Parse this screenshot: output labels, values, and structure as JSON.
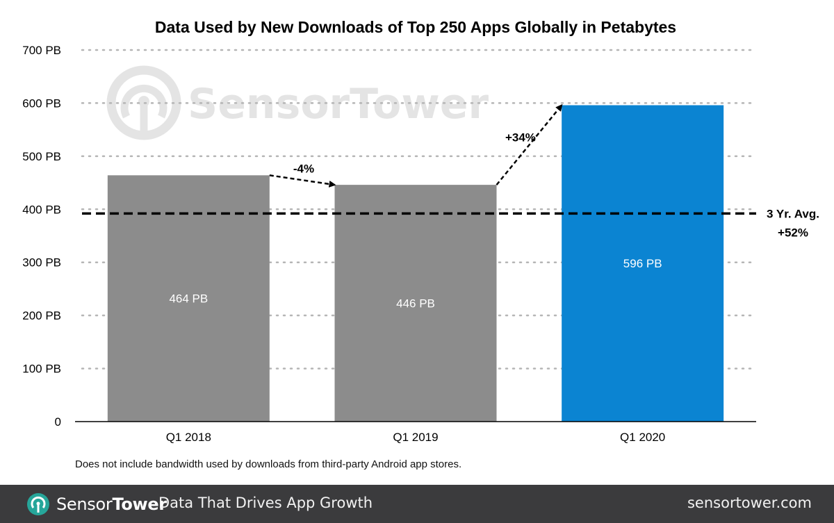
{
  "chart_data": {
    "type": "bar",
    "title": "Data Used by New Downloads of Top 250 Apps Globally in Petabytes",
    "categories": [
      "Q1 2018",
      "Q1 2019",
      "Q1 2020"
    ],
    "values": [
      464,
      446,
      596
    ],
    "data_labels": [
      "464 PB",
      "446 PB",
      "596 PB"
    ],
    "bar_colors": [
      "#8c8c8c",
      "#8c8c8c",
      "#0b84d2"
    ],
    "ylim": [
      0,
      700
    ],
    "yticks": [
      0,
      100,
      200,
      300,
      400,
      500,
      600,
      700
    ],
    "ytick_labels": [
      "0",
      "100 PB",
      "200 PB",
      "300 PB",
      "400 PB",
      "500 PB",
      "600 PB",
      "700 PB"
    ],
    "grid": true,
    "average_line": {
      "value": 392,
      "label_line1": "3 Yr. Avg.",
      "label_line2": "+52%"
    },
    "change_annotations": [
      {
        "from": "Q1 2018",
        "to": "Q1 2019",
        "label": "-4%"
      },
      {
        "from": "Q1 2019",
        "to": "Q1 2020",
        "label": "+34%"
      }
    ],
    "watermark": "SensorTower"
  },
  "footnote": "Does not include bandwidth used by downloads from third-party Android app stores.",
  "footer": {
    "brand_part1": "Sensor",
    "brand_part2": "Tower",
    "tagline": "Data That Drives App Growth",
    "website": "sensortower.com"
  },
  "colors": {
    "accent": "#0b84d2",
    "bar_gray": "#8c8c8c",
    "footer_bg": "#3b3b3d",
    "brand_icon": "#26a69a"
  }
}
